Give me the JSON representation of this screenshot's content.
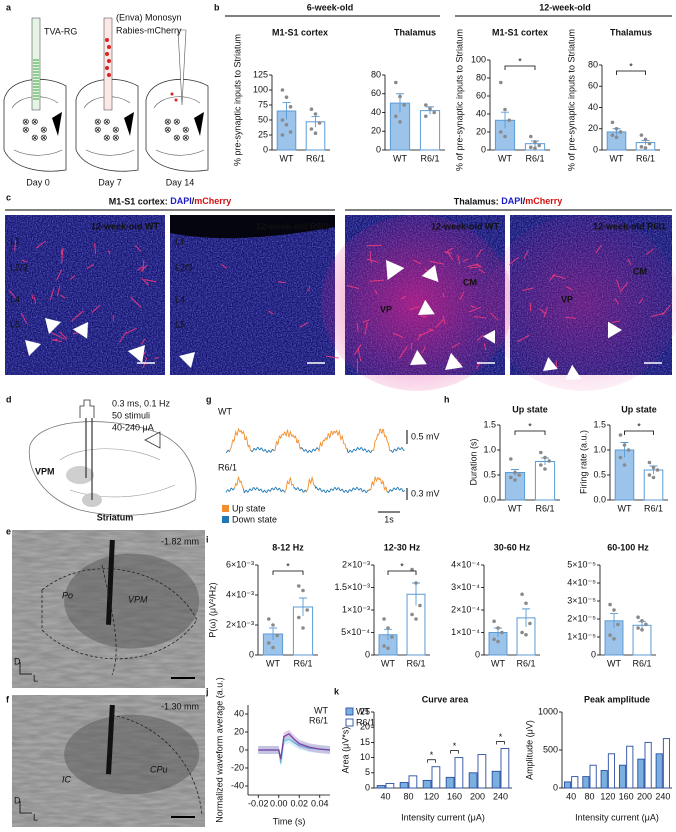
{
  "panel_labels": [
    "a",
    "b",
    "c",
    "d",
    "e",
    "f",
    "g",
    "h",
    "i",
    "j",
    "k"
  ],
  "panel_a": {
    "pipettes": [
      "TVA-RG",
      [
        "(Enva) Monosyn",
        "Rabies-mCherry"
      ]
    ],
    "days": [
      "Day 0",
      "Day 7",
      "Day 14"
    ]
  },
  "panel_b": {
    "groups": [
      "6-week-old",
      "12-week-old"
    ]
  },
  "panel_c": {
    "groups": [
      {
        "region": "M1-S1 cortex: ",
        "stains": [
          "DAPI",
          "/",
          "mCherry"
        ]
      },
      {
        "region": "Thalamus: ",
        "stains": [
          "DAPI",
          "/",
          "mCherry"
        ]
      }
    ],
    "images": [
      {
        "title": "12-week-old WT",
        "labels": [
          "L1",
          "L2/3",
          "L4",
          "L5"
        ]
      },
      {
        "title": "12-week-old R6\\1",
        "labels": [
          "L1",
          "L2/3",
          "L4",
          "L5"
        ]
      },
      {
        "title": "12-week-old WT",
        "labels": [
          "CM",
          "VP"
        ]
      },
      {
        "title": "12-week-old R6\\1",
        "labels": [
          "CM",
          "VP"
        ]
      }
    ]
  },
  "panel_d": {
    "stimulus": [
      "0.3 ms, 0.1 Hz",
      "50 stimuli",
      "40-240 μA"
    ],
    "regions": [
      "VPM",
      "Striatum"
    ]
  },
  "panel_e": {
    "level": "-1.82 mm",
    "regions": [
      "Po",
      "VPM"
    ],
    "axes": [
      "D",
      "L"
    ]
  },
  "panel_f": {
    "level": "-1.30 mm",
    "regions": [
      "IC",
      "CPu"
    ],
    "axes": [
      "D",
      "L"
    ]
  },
  "panel_g": {
    "traces": [
      "WT",
      "R6/1"
    ],
    "scales": [
      "0.5 mV",
      "0.3 mV",
      "1s"
    ],
    "legend": [
      {
        "name": "Up state",
        "color": "#f28e2b"
      },
      {
        "name": "Down state",
        "color": "#1f77b4"
      }
    ]
  },
  "chart_data": [
    {
      "type": "bar",
      "title": "M1-S1 cortex",
      "ylabel": "% pre-synaptic inputs to Striatum",
      "categories": [
        "WT",
        "R6/1"
      ],
      "values": [
        65,
        47
      ],
      "errors": [
        14,
        9
      ],
      "points": [
        [
          100,
          88,
          72,
          50,
          42,
          30,
          25
        ],
        [
          68,
          60,
          45,
          35,
          28
        ]
      ],
      "colors": [
        "#9cc3ea",
        "#ffffff"
      ],
      "edgecolor": "#5b9bd5",
      "ylim": [
        0,
        125
      ],
      "yticks": [
        0,
        25,
        50,
        75,
        100,
        125
      ]
    },
    {
      "type": "bar",
      "title": "Thalamus",
      "categories": [
        "WT",
        "R6/1"
      ],
      "values": [
        50,
        42
      ],
      "errors": [
        10,
        4
      ],
      "points": [
        [
          72,
          57,
          48,
          36,
          30
        ],
        [
          48,
          44,
          40,
          36
        ]
      ],
      "colors": [
        "#9cc3ea",
        "#ffffff"
      ],
      "edgecolor": "#5b9bd5",
      "ylim": [
        0,
        80
      ],
      "yticks": [
        0,
        20,
        40,
        60,
        80
      ]
    },
    {
      "type": "bar",
      "title": "M1-S1 cortex",
      "ylabel": "% of pre-synaptic inputs to Striatum",
      "categories": [
        "WT",
        "R6/1"
      ],
      "values": [
        33,
        7
      ],
      "errors": [
        9,
        3
      ],
      "points": [
        [
          75,
          45,
          33,
          20,
          15
        ],
        [
          15,
          9,
          5,
          3,
          2
        ]
      ],
      "colors": [
        "#9cc3ea",
        "#ffffff"
      ],
      "edgecolor": "#5b9bd5",
      "ylim": [
        0,
        100
      ],
      "yticks": [
        0,
        20,
        40,
        60,
        80,
        100
      ],
      "annotation": "*"
    },
    {
      "type": "bar",
      "title": "Thalamus",
      "ylabel": "% of pre-synaptic inputs to Striatum",
      "categories": [
        "WT",
        "R6/1"
      ],
      "values": [
        17,
        7
      ],
      "errors": [
        3,
        2
      ],
      "points": [
        [
          26,
          20,
          17,
          14,
          12
        ],
        [
          14,
          10,
          6,
          3,
          2
        ]
      ],
      "colors": [
        "#9cc3ea",
        "#ffffff"
      ],
      "edgecolor": "#5b9bd5",
      "ylim": [
        0,
        80
      ],
      "yticks": [
        0,
        20,
        40,
        60,
        80
      ],
      "annotation": "*"
    },
    {
      "type": "bar",
      "title": "Up state",
      "ylabel": "Duration (s)",
      "categories": [
        "WT",
        "R6/1"
      ],
      "values": [
        0.55,
        0.77
      ],
      "errors": [
        0.06,
        0.07
      ],
      "points": [
        [
          0.82,
          0.55,
          0.5,
          0.45,
          0.4
        ],
        [
          0.95,
          0.85,
          0.78,
          0.7,
          0.62
        ]
      ],
      "colors": [
        "#9cc3ea",
        "#ffffff"
      ],
      "edgecolor": "#5b9bd5",
      "ylim": [
        0,
        1.5
      ],
      "yticks": [
        {
          "value": 0,
          "label": "0.0"
        },
        {
          "value": 0.5,
          "label": "0.5"
        },
        {
          "value": 1,
          "label": "1.0"
        },
        {
          "value": 1.5,
          "label": "1.5"
        }
      ],
      "annotation": "*"
    },
    {
      "type": "bar",
      "title": "Up state",
      "ylabel": "Firing rate (a.u.)",
      "categories": [
        "WT",
        "R6/1"
      ],
      "values": [
        1.0,
        0.6
      ],
      "errors": [
        0.15,
        0.08
      ],
      "points": [
        [
          1.3,
          1.1,
          1.0,
          0.85,
          0.7
        ],
        [
          0.75,
          0.65,
          0.6,
          0.5,
          0.45
        ]
      ],
      "colors": [
        "#9cc3ea",
        "#ffffff"
      ],
      "edgecolor": "#5b9bd5",
      "ylim": [
        0,
        1.5
      ],
      "yticks": [
        {
          "value": 0,
          "label": "0.0"
        },
        {
          "value": 0.5,
          "label": "0.5"
        },
        {
          "value": 1,
          "label": "1.0"
        },
        {
          "value": 1.5,
          "label": "1.5"
        }
      ],
      "annotation": "*"
    },
    {
      "type": "bar",
      "title": "8-12 Hz",
      "ylabel": "P(ω) (μV²/Hz)",
      "categories": [
        "WT",
        "R6/1"
      ],
      "values": [
        0.0014,
        0.0032
      ],
      "errors": [
        0.0004,
        0.0006
      ],
      "points": [
        [
          0.0024,
          0.002,
          0.0013,
          0.0008,
          0.0005
        ],
        [
          0.0046,
          0.0043,
          0.003,
          0.0025,
          0.0018
        ]
      ],
      "colors": [
        "#9cc3ea",
        "#ffffff"
      ],
      "edgecolor": "#5b9bd5",
      "ylim": [
        0,
        0.006
      ],
      "yticks": [
        0,
        {
          "value": 0.002,
          "label": "2×10⁻³"
        },
        {
          "value": 0.004,
          "label": "4×10⁻³"
        },
        {
          "value": 0.006,
          "label": "6×10⁻³"
        }
      ],
      "annotation": "*"
    },
    {
      "type": "bar",
      "title": "12-30 Hz",
      "categories": [
        "WT",
        "R6/1"
      ],
      "values": [
        0.00045,
        0.00135
      ],
      "errors": [
        0.00012,
        0.00025
      ],
      "points": [
        [
          0.0008,
          0.0006,
          0.0004,
          0.0002,
          0.00015
        ],
        [
          0.0019,
          0.0016,
          0.0011,
          0.0009,
          0.0008
        ]
      ],
      "colors": [
        "#9cc3ea",
        "#ffffff"
      ],
      "edgecolor": "#5b9bd5",
      "ylim": [
        0,
        0.002
      ],
      "yticks": [
        0,
        {
          "value": 0.0005,
          "label": "5×10⁻⁴"
        },
        {
          "value": 0.001,
          "label": "1×10⁻³"
        },
        {
          "value": 0.0015,
          "label": "1.5×10⁻³"
        },
        {
          "value": 0.002,
          "label": "2×10⁻³"
        }
      ],
      "annotation": "*"
    },
    {
      "type": "bar",
      "title": "30-60 Hz",
      "categories": [
        "WT",
        "R6/1"
      ],
      "values": [
        0.0001,
        0.000165
      ],
      "errors": [
        2e-05,
        4e-05
      ],
      "points": [
        [
          0.00015,
          0.00012,
          0.0001,
          7e-05,
          6e-05
        ],
        [
          0.00027,
          0.00023,
          0.00014,
          0.0001,
          9e-05
        ]
      ],
      "colors": [
        "#9cc3ea",
        "#ffffff"
      ],
      "edgecolor": "#5b9bd5",
      "ylim": [
        0,
        0.0004
      ],
      "yticks": [
        0,
        {
          "value": 0.0001,
          "label": "1×10⁻⁴"
        },
        {
          "value": 0.0002,
          "label": "2×10⁻⁴"
        },
        {
          "value": 0.0003,
          "label": "3×10⁻⁴"
        },
        {
          "value": 0.0004,
          "label": "4×10⁻⁴"
        }
      ]
    },
    {
      "type": "bar",
      "title": "60-100 Hz",
      "categories": [
        "WT",
        "R6/1"
      ],
      "values": [
        1.9e-05,
        1.65e-05
      ],
      "errors": [
        4e-06,
        2e-06
      ],
      "points": [
        [
          2.8e-05,
          2.5e-05,
          1.7e-05,
          1.1e-05,
          9e-06
        ],
        [
          2.1e-05,
          1.9e-05,
          1.7e-05,
          1.5e-05,
          1.4e-05
        ]
      ],
      "colors": [
        "#9cc3ea",
        "#ffffff"
      ],
      "edgecolor": "#5b9bd5",
      "ylim": [
        0,
        5e-05
      ],
      "yticks": [
        0,
        {
          "value": 1e-05,
          "label": "1×10⁻⁵"
        },
        {
          "value": 2e-05,
          "label": "2×10⁻⁵"
        },
        {
          "value": 3e-05,
          "label": "3×10⁻⁵"
        },
        {
          "value": 4e-05,
          "label": "4×10⁻⁵"
        },
        {
          "value": 5e-05,
          "label": "5×10⁻⁵"
        }
      ]
    },
    {
      "type": "line",
      "ylabel": "Normalized waveform average (a.u.)",
      "xlabel": "Time (s)",
      "x": [
        -0.02,
        -0.01,
        0,
        0.002,
        0.005,
        0.01,
        0.015,
        0.02,
        0.03,
        0.04,
        0.05
      ],
      "series": [
        {
          "name": "WT",
          "color": "#6ec6e8",
          "values": [
            0,
            0,
            0,
            -15,
            10,
            12,
            8,
            5,
            2,
            1,
            0
          ]
        },
        {
          "name": "R6/1",
          "color": "#7b3fa0",
          "values": [
            0,
            0,
            0,
            -10,
            15,
            18,
            12,
            7,
            3,
            1,
            0
          ]
        }
      ],
      "xlim": [
        -0.03,
        0.05
      ],
      "ylim": [
        -50,
        50
      ],
      "xticks": [
        -0.02,
        {
          "value": 0,
          "label": "0.00"
        },
        0.02,
        0.04
      ],
      "yticks": [
        -40,
        -20,
        0,
        20,
        40
      ]
    },
    {
      "type": "grouped_bar",
      "title": "Curve area",
      "ylabel": "Area (μV*s)",
      "xlabel": "Intensity current (μA)",
      "categories": [
        "40",
        "80",
        "120",
        "160",
        "200",
        "240"
      ],
      "series": [
        {
          "name": "WT",
          "color": "#7ab0e0",
          "values": [
            0.8,
            1.8,
            2.5,
            3.5,
            5,
            5.5
          ]
        },
        {
          "name": "R6/1",
          "color": "#ffffff",
          "values": [
            1.5,
            4,
            7,
            10,
            11,
            13
          ]
        }
      ],
      "significance": [
        null,
        null,
        "*",
        "*",
        null,
        "*"
      ],
      "edgecolor": "#2b4ea2",
      "ylim": [
        0,
        25
      ],
      "yticks": [
        0,
        5,
        10,
        15,
        20,
        25
      ],
      "legend": "upper left"
    },
    {
      "type": "grouped_bar",
      "title": "Peak amplitude",
      "ylabel": "Amplitude (μV)",
      "xlabel": "Intensity current (μA)",
      "categories": [
        "40",
        "80",
        "120",
        "160",
        "200",
        "240"
      ],
      "series": [
        {
          "name": "WT",
          "color": "#7ab0e0",
          "values": [
            80,
            150,
            230,
            300,
            380,
            450
          ]
        },
        {
          "name": "R6/1",
          "color": "#ffffff",
          "values": [
            150,
            300,
            450,
            550,
            600,
            650
          ]
        }
      ],
      "edgecolor": "#2b4ea2",
      "ylim": [
        0,
        1000
      ],
      "yticks": [
        0,
        500,
        1000
      ]
    }
  ]
}
